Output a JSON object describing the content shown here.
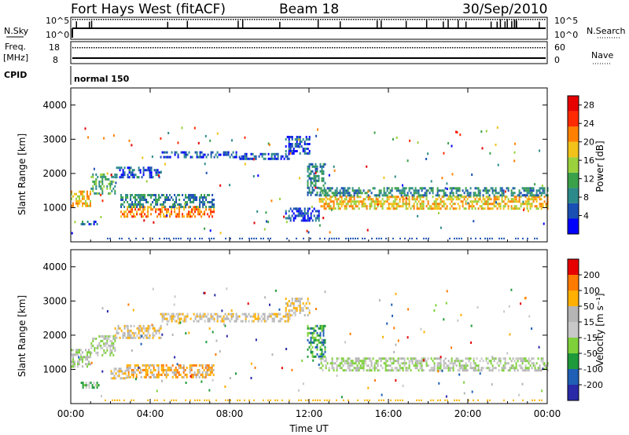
{
  "header": {
    "station": "Fort Hays West (fitACF)",
    "beam": "Beam 18",
    "date": "30/Sep/2010"
  },
  "summary_panel": {
    "left_labels": [
      "N.Sky",
      "Freq.",
      "[MHz]",
      "CPID"
    ],
    "right_labels": [
      "N.Search",
      "Nave"
    ],
    "nsky_ticks": [
      "10^5",
      "10^0"
    ],
    "nsearch_ticks": [
      "10^5",
      "10^0"
    ],
    "freq_ticks": [
      "18",
      "8"
    ],
    "nave_ticks": [
      "60",
      "0"
    ],
    "cpid_text": "normal 150"
  },
  "colors": {
    "power": [
      "#0000ff",
      "#1a4fb3",
      "#2d8a8a",
      "#3aa14a",
      "#9bd13c",
      "#f2c21a",
      "#ff8000",
      "#ff2a00",
      "#e60000"
    ],
    "velocity": [
      "#2a2aa8",
      "#1f5fb5",
      "#1f9a3a",
      "#7fd13b",
      "#c8c8c8",
      "#b5b5b5",
      "#ffb000",
      "#ff7a00",
      "#e60000"
    ]
  },
  "chart_data": [
    {
      "type": "heatmap",
      "panel": "power",
      "ylabel": "Slant Range [km]",
      "ylim": [
        0,
        4500
      ],
      "yticks": [
        1000,
        2000,
        3000,
        4000
      ],
      "xlim_hours": [
        0,
        24
      ],
      "xticks": [
        "00:00",
        "04:00",
        "08:00",
        "12:00",
        "16:00",
        "20:00",
        "00:00"
      ],
      "colorbar": {
        "label": "Power [dB]",
        "ticks": [
          4,
          8,
          12,
          16,
          20,
          24,
          28
        ],
        "range": [
          0,
          30
        ]
      },
      "bands": [
        {
          "t0": 0.0,
          "t1": 1.0,
          "r0": 1050,
          "r1": 1500,
          "level": 5
        },
        {
          "t0": 1.0,
          "t1": 2.2,
          "r0": 1400,
          "r1": 2000,
          "level": 3
        },
        {
          "t0": 2.2,
          "t1": 4.5,
          "r0": 1900,
          "r1": 2200,
          "level": 1
        },
        {
          "t0": 2.5,
          "t1": 7.2,
          "r0": 750,
          "r1": 1050,
          "level": 6
        },
        {
          "t0": 2.5,
          "t1": 7.2,
          "r0": 1050,
          "r1": 1400,
          "level": 2
        },
        {
          "t0": 4.5,
          "t1": 8.5,
          "r0": 2450,
          "r1": 2650,
          "level": 1
        },
        {
          "t0": 8.5,
          "t1": 11.0,
          "r0": 2400,
          "r1": 2600,
          "level": 1
        },
        {
          "t0": 10.8,
          "t1": 12.0,
          "r0": 2600,
          "r1": 3100,
          "level": 1
        },
        {
          "t0": 11.9,
          "t1": 12.8,
          "r0": 1400,
          "r1": 2300,
          "level": 2
        },
        {
          "t0": 10.8,
          "t1": 12.5,
          "r0": 600,
          "r1": 1000,
          "level": 1
        },
        {
          "t0": 12.5,
          "t1": 24.0,
          "r0": 950,
          "r1": 1350,
          "level": 5
        },
        {
          "t0": 12.5,
          "t1": 24.0,
          "r0": 1350,
          "r1": 1600,
          "level": 2
        },
        {
          "t0": 0.5,
          "t1": 1.4,
          "r0": 500,
          "r1": 620,
          "level": 1
        }
      ]
    },
    {
      "type": "heatmap",
      "panel": "velocity",
      "ylabel": "Slant Range [km]",
      "ylim": [
        0,
        4500
      ],
      "yticks": [
        1000,
        2000,
        3000,
        4000
      ],
      "xlim_hours": [
        0,
        24
      ],
      "xticks": [
        "00:00",
        "04:00",
        "08:00",
        "12:00",
        "16:00",
        "20:00",
        "00:00"
      ],
      "xlabel": "Time UT",
      "colorbar": {
        "label": "Velocity [m s⁻¹]",
        "ticks": [
          200,
          100,
          50,
          15,
          -15,
          -50,
          -100,
          -200
        ],
        "range": [
          -250,
          250
        ]
      },
      "bands": [
        {
          "t0": 0.0,
          "t1": 1.0,
          "r0": 1050,
          "r1": 1600,
          "level": 4
        },
        {
          "t0": 1.0,
          "t1": 2.2,
          "r0": 1400,
          "r1": 2000,
          "level": 4
        },
        {
          "t0": 2.2,
          "t1": 4.5,
          "r0": 1900,
          "r1": 2300,
          "level": 5
        },
        {
          "t0": 2.8,
          "t1": 7.2,
          "r0": 780,
          "r1": 1150,
          "level": 6
        },
        {
          "t0": 2.0,
          "t1": 2.8,
          "r0": 750,
          "r1": 1050,
          "level": 5
        },
        {
          "t0": 4.5,
          "t1": 11.0,
          "r0": 2400,
          "r1": 2650,
          "level": 5
        },
        {
          "t0": 10.8,
          "t1": 12.0,
          "r0": 2600,
          "r1": 3100,
          "level": 5
        },
        {
          "t0": 11.9,
          "t1": 12.8,
          "r0": 1400,
          "r1": 2300,
          "level": 2
        },
        {
          "t0": 12.5,
          "t1": 24.0,
          "r0": 950,
          "r1": 1350,
          "level": 4
        },
        {
          "t0": 0.5,
          "t1": 1.4,
          "r0": 500,
          "r1": 640,
          "level": 3
        }
      ]
    }
  ]
}
